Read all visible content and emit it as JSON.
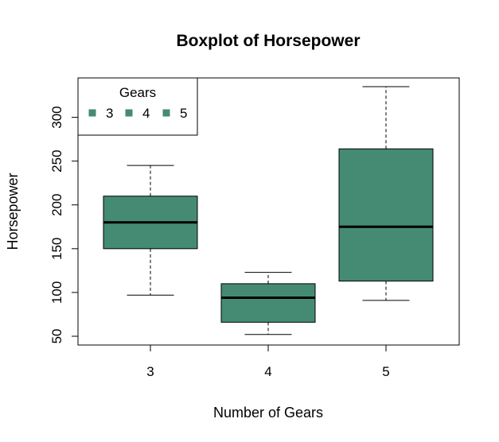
{
  "chart_data": {
    "type": "box",
    "title": "Boxplot of Horsepower",
    "xlabel": "Number of Gears",
    "ylabel": "Horsepower",
    "categories": [
      "3",
      "4",
      "5"
    ],
    "boxes": [
      {
        "category": "3",
        "whisker_low": 97,
        "q1": 150,
        "median": 180,
        "q3": 210,
        "whisker_high": 245
      },
      {
        "category": "4",
        "whisker_low": 52,
        "q1": 66,
        "median": 94,
        "q3": 110,
        "whisker_high": 123
      },
      {
        "category": "5",
        "whisker_low": 91,
        "q1": 113,
        "median": 175,
        "q3": 264,
        "whisker_high": 335
      }
    ],
    "ylim": [
      40,
      345
    ],
    "yticks": [
      50,
      100,
      150,
      200,
      250,
      300
    ],
    "grid": false,
    "legend": {
      "title": "Gears",
      "placement": "top-left",
      "entries": [
        "3",
        "4",
        "5"
      ]
    },
    "colors": {
      "box_fill": "#458b74",
      "median": "#000000",
      "border": "#000000"
    }
  }
}
